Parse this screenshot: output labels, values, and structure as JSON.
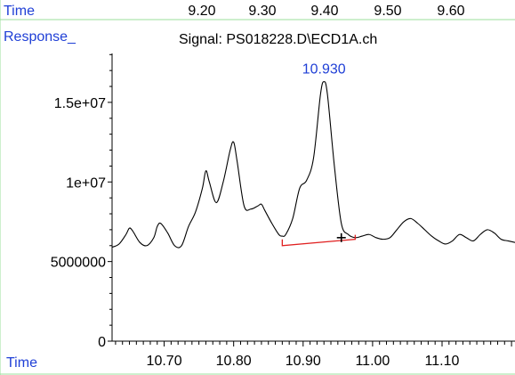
{
  "chart_data": {
    "type": "line",
    "title": "Signal: PS018228.D\\ECD1A.ch",
    "ylabel": "Response_",
    "xlabel": "Time",
    "top_axis": {
      "label": "Time",
      "ticks": [
        "9.20",
        "9.30",
        "9.40",
        "9.50",
        "9.60"
      ],
      "values": [
        9.2,
        9.3,
        9.4,
        9.5,
        9.6
      ]
    },
    "x_ticks": [
      "10.70",
      "10.80",
      "10.90",
      "11.00",
      "11.10"
    ],
    "x_tick_values": [
      10.7,
      10.8,
      10.9,
      11.0,
      11.1
    ],
    "y_ticks": [
      "0",
      "5000000",
      "1e+07",
      "1.5e+07"
    ],
    "y_tick_values": [
      0,
      5000000,
      10000000,
      15000000
    ],
    "xlim": [
      10.625,
      11.205
    ],
    "ylim": [
      0,
      18800000
    ],
    "grid": false,
    "peak_label": {
      "text": "10.930",
      "x": 10.93,
      "y": 16300000
    },
    "peak_marker": {
      "x": 10.955,
      "y": 6500000
    },
    "baseline": {
      "x1": 10.87,
      "y1": 6000000,
      "x2": 10.975,
      "y2": 6400000
    },
    "series": [
      {
        "x": [
          10.625,
          10.635,
          10.645,
          10.65,
          10.655,
          10.665,
          10.675,
          10.685,
          10.69,
          10.695,
          10.705,
          10.715,
          10.725,
          10.735,
          10.745,
          10.755,
          10.76,
          10.765,
          10.775,
          10.785,
          10.795,
          10.8,
          10.805,
          10.815,
          10.825,
          10.835,
          10.84,
          10.845,
          10.855,
          10.865,
          10.87,
          10.875,
          10.885,
          10.895,
          10.905,
          10.915,
          10.925,
          10.93,
          10.935,
          10.945,
          10.955,
          10.965,
          10.975,
          10.985,
          10.995,
          11.005,
          11.015,
          11.025,
          11.035,
          11.045,
          11.055,
          11.065,
          11.075,
          11.085,
          11.095,
          11.105,
          11.115,
          11.125,
          11.135,
          11.145,
          11.155,
          11.165,
          11.175,
          11.185,
          11.195,
          11.205
        ],
        "y": [
          5900000,
          6100000,
          6700000,
          7100000,
          6900000,
          6200000,
          6000000,
          6500000,
          7200000,
          7400000,
          6800000,
          6000000,
          6000000,
          7200000,
          8100000,
          9600000,
          10700000,
          10000000,
          8700000,
          10000000,
          12000000,
          12500000,
          11300000,
          8500000,
          8300000,
          8500000,
          8600000,
          8200000,
          7400000,
          6700000,
          6600000,
          6700000,
          7700000,
          9600000,
          10100000,
          11500000,
          15500000,
          16300000,
          15500000,
          11000000,
          7400000,
          6700000,
          6500000,
          6600000,
          6700000,
          6500000,
          6400000,
          6500000,
          7000000,
          7500000,
          7700000,
          7400000,
          7000000,
          6600000,
          6300000,
          6100000,
          6300000,
          6700000,
          6500000,
          6300000,
          6700000,
          7000000,
          6800000,
          6400000,
          6300000,
          6200000
        ]
      }
    ]
  }
}
